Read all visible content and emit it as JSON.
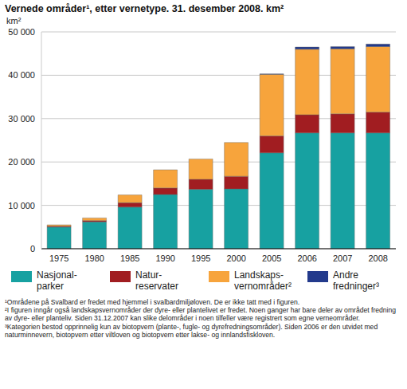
{
  "chart_data": {
    "type": "bar",
    "title": "Vernede områder¹, etter vernetype. 31. desember 2008. km²",
    "y_label": "km²",
    "categories": [
      "1975",
      "1980",
      "1985",
      "1990",
      "1995",
      "2000",
      "2005",
      "2006",
      "2007",
      "2008"
    ],
    "series": [
      {
        "name": "Nasjonal-\nparker",
        "color": "#17a1a1",
        "values": [
          5000,
          6200,
          9600,
          12500,
          13700,
          13800,
          22100,
          26700,
          26700,
          26700
        ]
      },
      {
        "name": "Natur-\nreservater",
        "color": "#a11d21",
        "values": [
          200,
          300,
          1000,
          1500,
          2300,
          2900,
          3900,
          4200,
          4400,
          4800
        ]
      },
      {
        "name": "Landskaps-\nvernområder²",
        "color": "#f7a43c",
        "values": [
          300,
          600,
          1800,
          4200,
          4700,
          7800,
          14200,
          15100,
          15000,
          15100
        ]
      },
      {
        "name": "Andre\nfredninger³",
        "color": "#233a8c",
        "values": [
          0,
          0,
          0,
          0,
          0,
          0,
          100,
          500,
          500,
          600
        ]
      }
    ],
    "ylim": [
      0,
      50000
    ],
    "yticks": [
      0,
      {
        "value": 10000,
        "label": "10 000"
      },
      {
        "value": 20000,
        "label": "20 000"
      },
      {
        "value": 30000,
        "label": "30 000"
      },
      {
        "value": 40000,
        "label": "40 000"
      },
      {
        "value": 50000,
        "label": "50 000"
      }
    ],
    "stacked": true,
    "grid": true,
    "legend": "bottom",
    "footnotes": [
      "¹Områdene på Svalbard er fredet med hjemmel i svalbardmiljøloven. De er ikke tatt med i figuren.",
      "²I figuren inngår også landskapsvernområder der dyre- eller plantelivet er fredet. Noen ganger har bare deler av området fredning av dyre- eller planteliv. Siden 31.12.2007 kan slike delområder i noen tilfeller være registrert som egne verneområder.",
      "³Kategorien bestod opprinnelig kun av biotopvern (plante-, fugle- og dyrefredningsområder). Siden 2006 er den utvidet med naturminnevern, biotopvern etter viltloven og biotopvern etter lakse- og innlandsfiskloven."
    ]
  }
}
